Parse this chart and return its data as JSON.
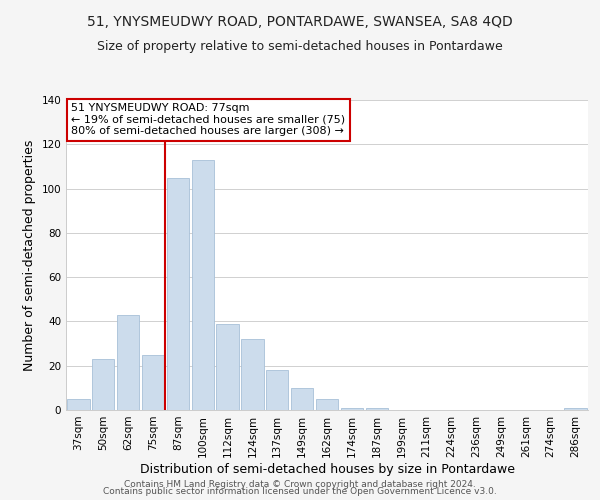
{
  "title": "51, YNYSMEUDWY ROAD, PONTARDAWE, SWANSEA, SA8 4QD",
  "subtitle": "Size of property relative to semi-detached houses in Pontardawe",
  "xlabel": "Distribution of semi-detached houses by size in Pontardawe",
  "ylabel": "Number of semi-detached properties",
  "categories": [
    "37sqm",
    "50sqm",
    "62sqm",
    "75sqm",
    "87sqm",
    "100sqm",
    "112sqm",
    "124sqm",
    "137sqm",
    "149sqm",
    "162sqm",
    "174sqm",
    "187sqm",
    "199sqm",
    "211sqm",
    "224sqm",
    "236sqm",
    "249sqm",
    "261sqm",
    "274sqm",
    "286sqm"
  ],
  "values": [
    5,
    23,
    43,
    25,
    105,
    113,
    39,
    32,
    18,
    10,
    5,
    1,
    1,
    0,
    0,
    0,
    0,
    0,
    0,
    0,
    1
  ],
  "bar_color": "#ccdcec",
  "bar_edge_color": "#a8c0d8",
  "vline_x_index": 3.5,
  "vline_color": "#cc0000",
  "annotation_box_title": "51 YNYSMEUDWY ROAD: 77sqm",
  "annotation_line1": "← 19% of semi-detached houses are smaller (75)",
  "annotation_line2": "80% of semi-detached houses are larger (308) →",
  "annotation_box_color": "#ffffff",
  "annotation_box_edge_color": "#cc0000",
  "ylim": [
    0,
    140
  ],
  "footer1": "Contains HM Land Registry data © Crown copyright and database right 2024.",
  "footer2": "Contains public sector information licensed under the Open Government Licence v3.0.",
  "background_color": "#f5f5f5",
  "plot_background_color": "#ffffff",
  "title_fontsize": 10,
  "subtitle_fontsize": 9,
  "axis_label_fontsize": 9,
  "tick_fontsize": 7.5
}
